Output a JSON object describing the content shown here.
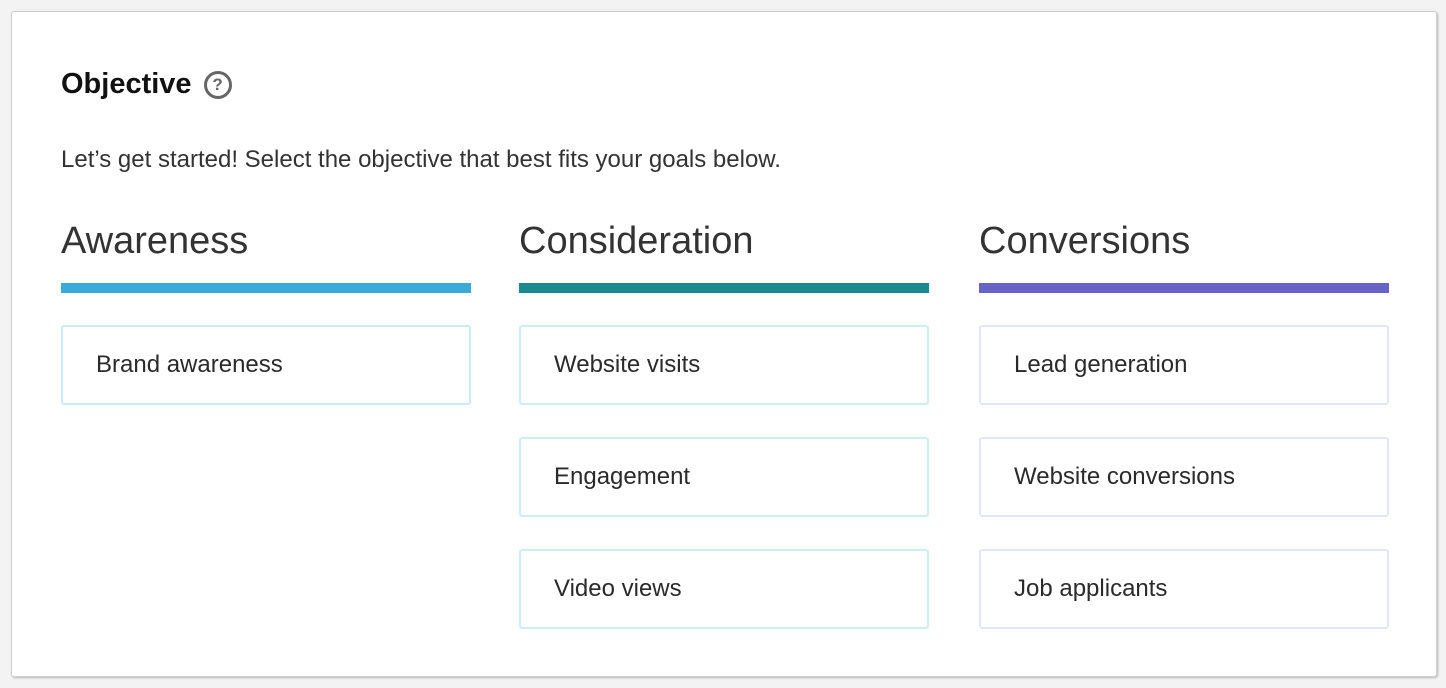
{
  "header": {
    "title": "Objective",
    "help_icon": "question-circle-icon",
    "subtitle": "Let’s get started! Select the objective that best fits your goals below."
  },
  "columns": [
    {
      "label": "Awareness",
      "color": "#3aabd8",
      "border_color": "#cdeaf7",
      "items": [
        "Brand awareness"
      ]
    },
    {
      "label": "Consideration",
      "color": "#1b8a8e",
      "border_color": "#cdeef0",
      "items": [
        "Website visits",
        "Engagement",
        "Video views"
      ]
    },
    {
      "label": "Conversions",
      "color": "#6863c9",
      "border_color": "#e4e4fb",
      "items": [
        "Lead generation",
        "Website conversions",
        "Job applicants"
      ]
    }
  ]
}
